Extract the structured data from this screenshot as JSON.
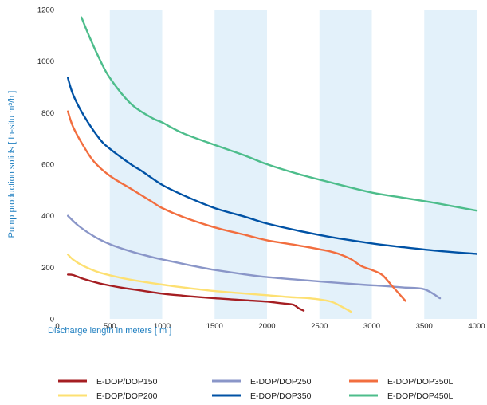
{
  "chart_data": {
    "type": "line",
    "title": "",
    "xlabel": "Discharge length in meters [ m ]",
    "ylabel": "Pump production solids [ In-situ m³/h ]",
    "xlim": [
      0,
      4000
    ],
    "ylim": [
      0,
      1200
    ],
    "xticks": [
      0,
      500,
      1000,
      1500,
      2000,
      2500,
      3000,
      3500,
      4000
    ],
    "yticks": [
      0,
      200,
      400,
      600,
      800,
      1000,
      1200
    ],
    "xtick_labels": [
      "0",
      "500",
      "1000",
      "1500",
      "2000",
      "2500",
      "3000",
      "3500",
      "4000"
    ],
    "ytick_labels": [
      "0",
      "200",
      "400",
      "600",
      "800",
      "1000",
      "1200"
    ],
    "background_bands": "alternating light blue vertical bands every 500 m",
    "band_color": "#e3f1fa",
    "grid": false,
    "legend_position": "bottom",
    "series": [
      {
        "name": "E-DOP/DOP150",
        "color": "#a51e22",
        "points": [
          [
            100,
            172
          ],
          [
            150,
            170
          ],
          [
            250,
            155
          ],
          [
            400,
            138
          ],
          [
            600,
            122
          ],
          [
            800,
            110
          ],
          [
            1000,
            98
          ],
          [
            1200,
            90
          ],
          [
            1500,
            80
          ],
          [
            1800,
            72
          ],
          [
            2000,
            67
          ],
          [
            2150,
            60
          ],
          [
            2250,
            55
          ],
          [
            2300,
            42
          ],
          [
            2350,
            32
          ]
        ]
      },
      {
        "name": "E-DOP/DOP200",
        "color": "#fde072",
        "points": [
          [
            100,
            250
          ],
          [
            150,
            230
          ],
          [
            250,
            205
          ],
          [
            400,
            180
          ],
          [
            600,
            160
          ],
          [
            800,
            145
          ],
          [
            1000,
            133
          ],
          [
            1200,
            122
          ],
          [
            1500,
            108
          ],
          [
            1800,
            98
          ],
          [
            2000,
            92
          ],
          [
            2200,
            85
          ],
          [
            2400,
            80
          ],
          [
            2600,
            68
          ],
          [
            2700,
            50
          ],
          [
            2800,
            28
          ]
        ]
      },
      {
        "name": "E-DOP/DOP250",
        "color": "#8a96c8",
        "points": [
          [
            100,
            400
          ],
          [
            200,
            362
          ],
          [
            350,
            320
          ],
          [
            500,
            290
          ],
          [
            700,
            262
          ],
          [
            900,
            240
          ],
          [
            1100,
            222
          ],
          [
            1300,
            205
          ],
          [
            1500,
            190
          ],
          [
            1800,
            172
          ],
          [
            2000,
            162
          ],
          [
            2300,
            152
          ],
          [
            2600,
            142
          ],
          [
            2900,
            133
          ],
          [
            3100,
            128
          ],
          [
            3300,
            122
          ],
          [
            3500,
            115
          ],
          [
            3650,
            80
          ]
        ]
      },
      {
        "name": "E-DOP/DOP350",
        "color": "#0052a5",
        "points": [
          [
            100,
            935
          ],
          [
            150,
            870
          ],
          [
            250,
            790
          ],
          [
            400,
            700
          ],
          [
            500,
            660
          ],
          [
            700,
            600
          ],
          [
            800,
            575
          ],
          [
            1000,
            520
          ],
          [
            1200,
            480
          ],
          [
            1500,
            430
          ],
          [
            1800,
            395
          ],
          [
            2000,
            370
          ],
          [
            2300,
            342
          ],
          [
            2600,
            318
          ],
          [
            3000,
            293
          ],
          [
            3300,
            278
          ],
          [
            3600,
            265
          ],
          [
            4000,
            252
          ]
        ]
      },
      {
        "name": "E-DOP/DOP350L",
        "color": "#f26e3f",
        "points": [
          [
            100,
            805
          ],
          [
            150,
            745
          ],
          [
            250,
            670
          ],
          [
            350,
            610
          ],
          [
            500,
            555
          ],
          [
            700,
            505
          ],
          [
            900,
            455
          ],
          [
            1000,
            430
          ],
          [
            1200,
            395
          ],
          [
            1500,
            355
          ],
          [
            1800,
            325
          ],
          [
            2000,
            305
          ],
          [
            2300,
            285
          ],
          [
            2500,
            270
          ],
          [
            2600,
            262
          ],
          [
            2700,
            250
          ],
          [
            2800,
            232
          ],
          [
            2900,
            205
          ],
          [
            3000,
            190
          ],
          [
            3100,
            170
          ],
          [
            3200,
            125
          ],
          [
            3320,
            70
          ]
        ]
      },
      {
        "name": "E-DOP/DOP450L",
        "color": "#4dbd8b",
        "points": [
          [
            230,
            1170
          ],
          [
            300,
            1100
          ],
          [
            400,
            1010
          ],
          [
            500,
            935
          ],
          [
            700,
            835
          ],
          [
            900,
            780
          ],
          [
            1000,
            762
          ],
          [
            1200,
            720
          ],
          [
            1500,
            675
          ],
          [
            1800,
            632
          ],
          [
            2000,
            600
          ],
          [
            2300,
            562
          ],
          [
            2600,
            530
          ],
          [
            3000,
            490
          ],
          [
            3300,
            470
          ],
          [
            3600,
            450
          ],
          [
            4000,
            420
          ]
        ]
      }
    ]
  }
}
